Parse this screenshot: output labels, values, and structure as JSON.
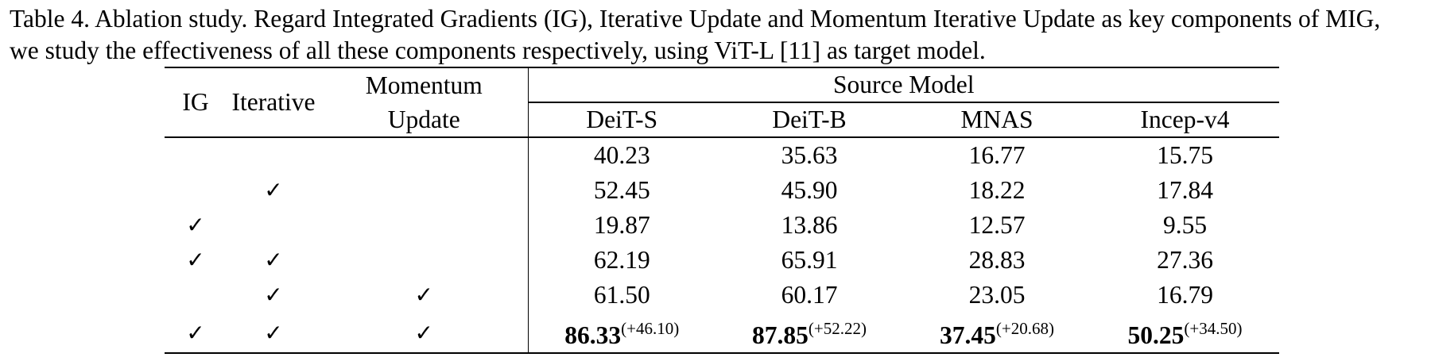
{
  "caption": {
    "line1": "Table 4. Ablation study. Regard Integrated Gradients (IG), Iterative Update and Momentum Iterative Update as key components of MIG,",
    "line2": "we study the effectiveness of all these components respectively, using ViT-L [11] as target model."
  },
  "table": {
    "headers": {
      "ig": "IG",
      "iterative": "Iterative",
      "momentum_line1": "Momentum",
      "momentum_line2": "Update",
      "source_model": "Source Model",
      "sources": [
        "DeiT-S",
        "DeiT-B",
        "MNAS",
        "Incep-v4"
      ]
    },
    "check_mark": "✓",
    "rows": [
      {
        "ig": false,
        "iterative": false,
        "momentum": false,
        "values": [
          "40.23",
          "35.63",
          "16.77",
          "15.75"
        ]
      },
      {
        "ig": false,
        "iterative": true,
        "momentum": false,
        "values": [
          "52.45",
          "45.90",
          "18.22",
          "17.84"
        ]
      },
      {
        "ig": true,
        "iterative": false,
        "momentum": false,
        "values": [
          "19.87",
          "13.86",
          "12.57",
          "9.55"
        ]
      },
      {
        "ig": true,
        "iterative": true,
        "momentum": false,
        "values": [
          "62.19",
          "65.91",
          "28.83",
          "27.36"
        ]
      },
      {
        "ig": false,
        "iterative": true,
        "momentum": true,
        "values": [
          "61.50",
          "60.17",
          "23.05",
          "16.79"
        ]
      },
      {
        "ig": true,
        "iterative": true,
        "momentum": true,
        "values": [
          "86.33",
          "87.85",
          "37.45",
          "50.25"
        ],
        "gains": [
          "(+46.10)",
          "(+52.22)",
          "(+20.68)",
          "(+34.50)"
        ],
        "bold": true
      }
    ]
  }
}
